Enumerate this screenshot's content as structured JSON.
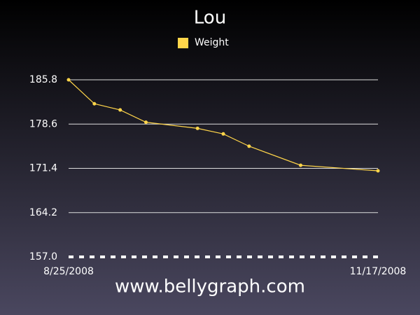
{
  "chart_data": {
    "type": "line",
    "title": "Lou",
    "footer": "www.bellygraph.com",
    "x": [
      "8/25/2008",
      "9/1/2008",
      "9/8/2008",
      "9/15/2008",
      "9/29/2008",
      "10/6/2008",
      "10/13/2008",
      "10/27/2008",
      "11/17/2008"
    ],
    "series": [
      {
        "name": "Weight",
        "color": "#ffd54a",
        "values": [
          185.8,
          181.9,
          180.9,
          178.9,
          177.9,
          177.0,
          175.0,
          171.9,
          171.0
        ]
      }
    ],
    "xlim": [
      "8/25/2008",
      "11/17/2008"
    ],
    "xticks": [
      "8/25/2008",
      "11/17/2008"
    ],
    "ylim": [
      157,
      185.8
    ],
    "yticks": [
      {
        "value": 157,
        "label": "157.0"
      },
      164.2,
      171.4,
      178.6,
      185.8
    ],
    "grid": true,
    "legend": "top"
  }
}
